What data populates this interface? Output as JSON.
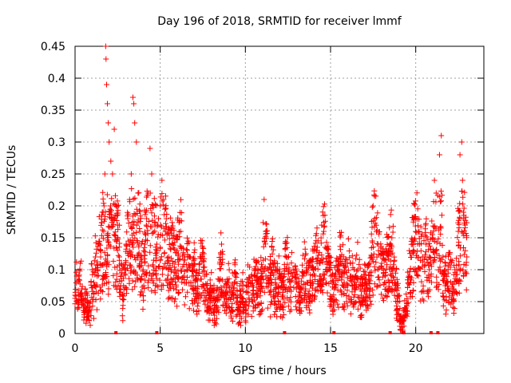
{
  "chart_data": {
    "type": "scatter",
    "title": "Day 196 of 2018, SRMTID for receiver lmmf",
    "xlabel": "GPS time / hours",
    "ylabel": "SRMTID / TECUs",
    "xlim": [
      0,
      24
    ],
    "ylim": [
      0,
      0.45
    ],
    "x_ticks": [
      0,
      5,
      10,
      15,
      20
    ],
    "x_tick_labels": [
      "0",
      "5",
      "10",
      "15",
      "20"
    ],
    "y_ticks": [
      0,
      0.05,
      0.1,
      0.15,
      0.2,
      0.25,
      0.3,
      0.35,
      0.4,
      0.45
    ],
    "y_tick_labels": [
      "0",
      "0.05",
      "0.1",
      "0.15",
      "0.2",
      "0.25",
      "0.3",
      "0.35",
      "0.4",
      "0.45"
    ],
    "grid": true,
    "marker": "+",
    "series": [
      {
        "name": "SRMTID",
        "color": "#ff0000",
        "points": [
          [
            0.0,
            0.06
          ],
          [
            0.1,
            0.09
          ],
          [
            0.2,
            0.05
          ],
          [
            0.3,
            0.11
          ],
          [
            0.4,
            0.07
          ],
          [
            0.5,
            0.04
          ],
          [
            0.6,
            0.06
          ],
          [
            0.7,
            0.05
          ],
          [
            0.8,
            0.03
          ],
          [
            0.9,
            0.05
          ],
          [
            1.0,
            0.1
          ],
          [
            1.1,
            0.08
          ],
          [
            1.2,
            0.12
          ],
          [
            1.3,
            0.09
          ],
          [
            1.4,
            0.14
          ],
          [
            1.5,
            0.12
          ],
          [
            1.6,
            0.19
          ],
          [
            1.7,
            0.2
          ],
          [
            1.75,
            0.25
          ],
          [
            1.8,
            0.45
          ],
          [
            1.82,
            0.43
          ],
          [
            1.85,
            0.39
          ],
          [
            1.9,
            0.36
          ],
          [
            1.95,
            0.33
          ],
          [
            2.0,
            0.3
          ],
          [
            2.1,
            0.27
          ],
          [
            2.2,
            0.25
          ],
          [
            2.3,
            0.32
          ],
          [
            2.4,
            0.2
          ],
          [
            2.5,
            0.17
          ],
          [
            2.6,
            0.12
          ],
          [
            2.7,
            0.09
          ],
          [
            2.8,
            0.06
          ],
          [
            2.9,
            0.1
          ],
          [
            3.0,
            0.14
          ],
          [
            3.1,
            0.18
          ],
          [
            3.2,
            0.21
          ],
          [
            3.3,
            0.25
          ],
          [
            3.4,
            0.37
          ],
          [
            3.45,
            0.36
          ],
          [
            3.5,
            0.33
          ],
          [
            3.6,
            0.3
          ],
          [
            3.7,
            0.22
          ],
          [
            3.8,
            0.16
          ],
          [
            3.9,
            0.12
          ],
          [
            4.0,
            0.1
          ],
          [
            4.1,
            0.14
          ],
          [
            4.2,
            0.18
          ],
          [
            4.3,
            0.22
          ],
          [
            4.4,
            0.29
          ],
          [
            4.5,
            0.25
          ],
          [
            4.6,
            0.2
          ],
          [
            4.7,
            0.17
          ],
          [
            4.8,
            0.14
          ],
          [
            4.9,
            0.18
          ],
          [
            5.0,
            0.2
          ],
          [
            5.1,
            0.24
          ],
          [
            5.2,
            0.21
          ],
          [
            5.3,
            0.16
          ],
          [
            5.5,
            0.12
          ],
          [
            5.7,
            0.14
          ],
          [
            5.9,
            0.1
          ],
          [
            6.0,
            0.13
          ],
          [
            6.2,
            0.16
          ],
          [
            6.4,
            0.09
          ],
          [
            6.6,
            0.12
          ],
          [
            6.8,
            0.08
          ],
          [
            7.0,
            0.1
          ],
          [
            7.2,
            0.07
          ],
          [
            7.4,
            0.12
          ],
          [
            7.6,
            0.09
          ],
          [
            7.8,
            0.05
          ],
          [
            8.0,
            0.07
          ],
          [
            8.2,
            0.04
          ],
          [
            8.4,
            0.06
          ],
          [
            8.6,
            0.14
          ],
          [
            8.8,
            0.05
          ],
          [
            9.0,
            0.08
          ],
          [
            9.2,
            0.06
          ],
          [
            9.4,
            0.09
          ],
          [
            9.6,
            0.04
          ],
          [
            9.8,
            0.07
          ],
          [
            10.0,
            0.05
          ],
          [
            10.2,
            0.08
          ],
          [
            10.4,
            0.06
          ],
          [
            10.6,
            0.1
          ],
          [
            10.8,
            0.07
          ],
          [
            11.0,
            0.09
          ],
          [
            11.1,
            0.21
          ],
          [
            11.2,
            0.16
          ],
          [
            11.4,
            0.08
          ],
          [
            11.6,
            0.11
          ],
          [
            11.8,
            0.07
          ],
          [
            12.0,
            0.09
          ],
          [
            12.2,
            0.06
          ],
          [
            12.4,
            0.12
          ],
          [
            12.6,
            0.08
          ],
          [
            12.8,
            0.1
          ],
          [
            13.0,
            0.07
          ],
          [
            13.2,
            0.06
          ],
          [
            13.4,
            0.09
          ],
          [
            13.6,
            0.11
          ],
          [
            13.8,
            0.08
          ],
          [
            14.0,
            0.1
          ],
          [
            14.2,
            0.13
          ],
          [
            14.4,
            0.09
          ],
          [
            14.6,
            0.16
          ],
          [
            14.8,
            0.11
          ],
          [
            15.0,
            0.09
          ],
          [
            15.2,
            0.07
          ],
          [
            15.4,
            0.1
          ],
          [
            15.6,
            0.12
          ],
          [
            15.8,
            0.08
          ],
          [
            16.0,
            0.11
          ],
          [
            16.2,
            0.09
          ],
          [
            16.4,
            0.07
          ],
          [
            16.6,
            0.1
          ],
          [
            16.8,
            0.06
          ],
          [
            17.0,
            0.08
          ],
          [
            17.2,
            0.07
          ],
          [
            17.4,
            0.12
          ],
          [
            17.5,
            0.2
          ],
          [
            17.6,
            0.18
          ],
          [
            17.8,
            0.14
          ],
          [
            18.0,
            0.11
          ],
          [
            18.2,
            0.09
          ],
          [
            18.4,
            0.13
          ],
          [
            18.6,
            0.15
          ],
          [
            18.8,
            0.08
          ],
          [
            19.0,
            0.06
          ],
          [
            19.1,
            0.02
          ],
          [
            19.2,
            0.01
          ],
          [
            19.4,
            0.04
          ],
          [
            19.6,
            0.09
          ],
          [
            19.8,
            0.14
          ],
          [
            20.0,
            0.18
          ],
          [
            20.2,
            0.16
          ],
          [
            20.4,
            0.12
          ],
          [
            20.6,
            0.14
          ],
          [
            20.8,
            0.1
          ],
          [
            21.0,
            0.15
          ],
          [
            21.1,
            0.24
          ],
          [
            21.2,
            0.22
          ],
          [
            21.4,
            0.28
          ],
          [
            21.5,
            0.31
          ],
          [
            21.6,
            0.12
          ],
          [
            21.8,
            0.08
          ],
          [
            22.0,
            0.11
          ],
          [
            22.2,
            0.07
          ],
          [
            22.4,
            0.1
          ],
          [
            22.5,
            0.16
          ],
          [
            22.6,
            0.28
          ],
          [
            22.7,
            0.3
          ],
          [
            22.75,
            0.24
          ],
          [
            22.8,
            0.19
          ],
          [
            22.9,
            0.17
          ],
          [
            23.0,
            0.12
          ]
        ]
      }
    ],
    "marker_count": 2400,
    "xaxis_markers": [
      2.4,
      4.8,
      12.3,
      15.2,
      18.5,
      19.3,
      20.9,
      21.3
    ]
  }
}
